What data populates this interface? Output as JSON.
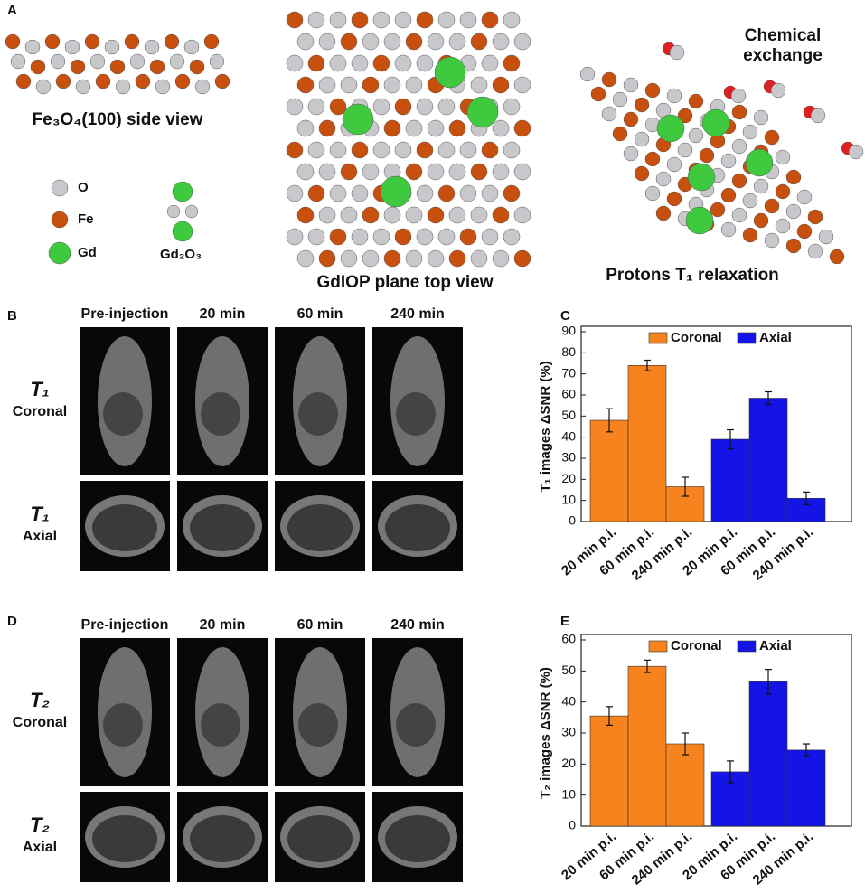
{
  "panels": {
    "A": {
      "label": "A",
      "side_view": "Fe₃O₄(100) side view",
      "legend": [
        "O",
        "Fe",
        "Gd"
      ],
      "gd2o3": "Gd₂O₃",
      "top_view": "GdIOP plane top view",
      "exchange": [
        "Chemical",
        "exchange"
      ],
      "relaxation": "Protons T₁ relaxation"
    },
    "B": {
      "label": "B",
      "columns": [
        "Pre-injection",
        "20 min",
        "60 min",
        "240 min"
      ],
      "rows": [
        [
          "T₁",
          "Coronal"
        ],
        [
          "T₁",
          "Axial"
        ]
      ]
    },
    "D": {
      "label": "D",
      "columns": [
        "Pre-injection",
        "20 min",
        "60 min",
        "240 min"
      ],
      "rows": [
        [
          "T₂",
          "Coronal"
        ],
        [
          "T₂",
          "Axial"
        ]
      ]
    }
  },
  "chart_data": [
    {
      "type": "bar",
      "label": "C",
      "ylabel": "T₁ images ΔSNR (%)",
      "categories": [
        "20 min p.i.",
        "60 min p.i.",
        "240 min p.i."
      ],
      "series": [
        {
          "name": "Coronal",
          "color": "#f7831e",
          "values": [
            48,
            74,
            16.5
          ],
          "errors": [
            5.5,
            2.5,
            4.5
          ]
        },
        {
          "name": "Axial",
          "color": "#1414e6",
          "values": [
            39,
            58.5,
            11
          ],
          "errors": [
            4.5,
            3,
            3
          ]
        }
      ],
      "ylim": [
        0,
        90
      ],
      "yticks": [
        0,
        10,
        20,
        30,
        40,
        50,
        60,
        70,
        80,
        90
      ]
    },
    {
      "type": "bar",
      "label": "E",
      "ylabel": "T₂ images ΔSNR (%)",
      "categories": [
        "20 min p.i.",
        "60 min p.i.",
        "240 min p.i."
      ],
      "series": [
        {
          "name": "Coronal",
          "color": "#f7831e",
          "values": [
            35.5,
            51.5,
            26.5
          ],
          "errors": [
            3,
            2,
            3.5
          ]
        },
        {
          "name": "Axial",
          "color": "#1414e6",
          "values": [
            17.5,
            46.5,
            24.5
          ],
          "errors": [
            3.5,
            4,
            2
          ]
        }
      ],
      "ylim": [
        0,
        60
      ],
      "yticks": [
        0,
        10,
        20,
        30,
        40,
        50,
        60
      ]
    }
  ]
}
